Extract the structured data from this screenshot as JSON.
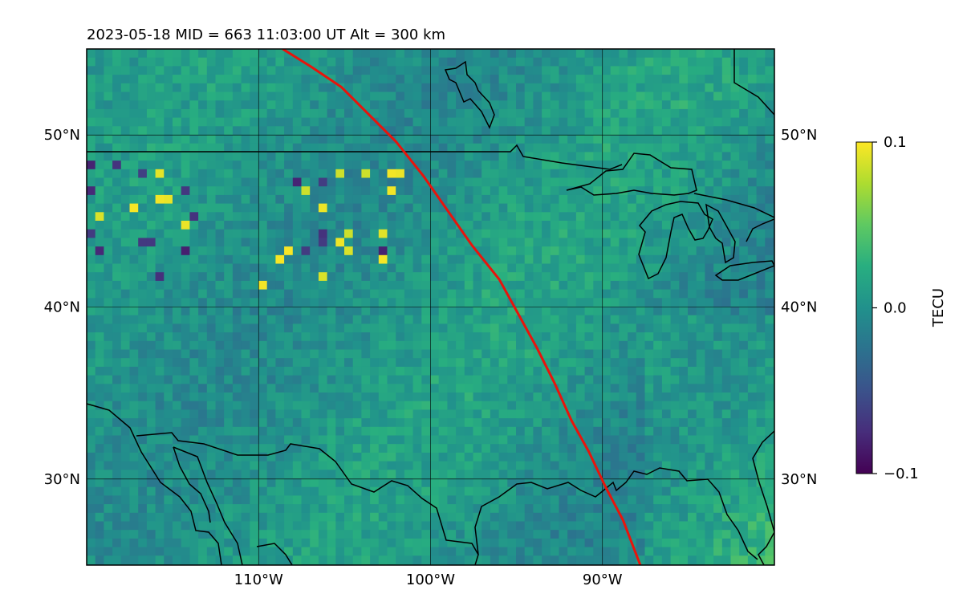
{
  "map": {
    "title": "2023-05-18  MID = 663    11:03:00  UT  Alt = 300 km",
    "lat_labels": [
      {
        "lat": 50,
        "text": "50°N"
      },
      {
        "lat": 40,
        "text": "40°N"
      },
      {
        "lat": 30,
        "text": "30°N"
      }
    ],
    "lon_labels": [
      {
        "lon": -110,
        "text": "110°W"
      },
      {
        "lon": -100,
        "text": "100°W"
      },
      {
        "lon": -90,
        "text": "90°W"
      }
    ],
    "extent": {
      "lon_min": -120,
      "lon_max": -80,
      "lat_min": 25,
      "lat_max": 55
    },
    "colors": {
      "track": "#e8140c",
      "coast": "#000000",
      "grid": "#000000",
      "field_base": "#2a8c8a"
    },
    "track": [
      [
        -108.6,
        55
      ],
      [
        -107,
        54
      ],
      [
        -105.2,
        52.8
      ],
      [
        -103.6,
        51.2
      ],
      [
        -102,
        49.6
      ],
      [
        -100.4,
        47.6
      ],
      [
        -99,
        45.6
      ],
      [
        -97.6,
        43.6
      ],
      [
        -96,
        41.6
      ],
      [
        -94.9,
        39.6
      ],
      [
        -93.8,
        37.6
      ],
      [
        -92.8,
        35.6
      ],
      [
        -91.8,
        33.4
      ],
      [
        -90.8,
        31.6
      ],
      [
        -89.8,
        29.5
      ],
      [
        -88.8,
        27.6
      ],
      [
        -87.8,
        25
      ]
    ]
  },
  "colorbar": {
    "label": "TECU",
    "ticks": [
      {
        "value": 0.1,
        "text": "0.1"
      },
      {
        "value": 0.0,
        "text": "0.0"
      },
      {
        "value": -0.1,
        "text": "−0.1"
      }
    ],
    "vmin": -0.1,
    "vmax": 0.1,
    "colormap": "viridis"
  }
}
